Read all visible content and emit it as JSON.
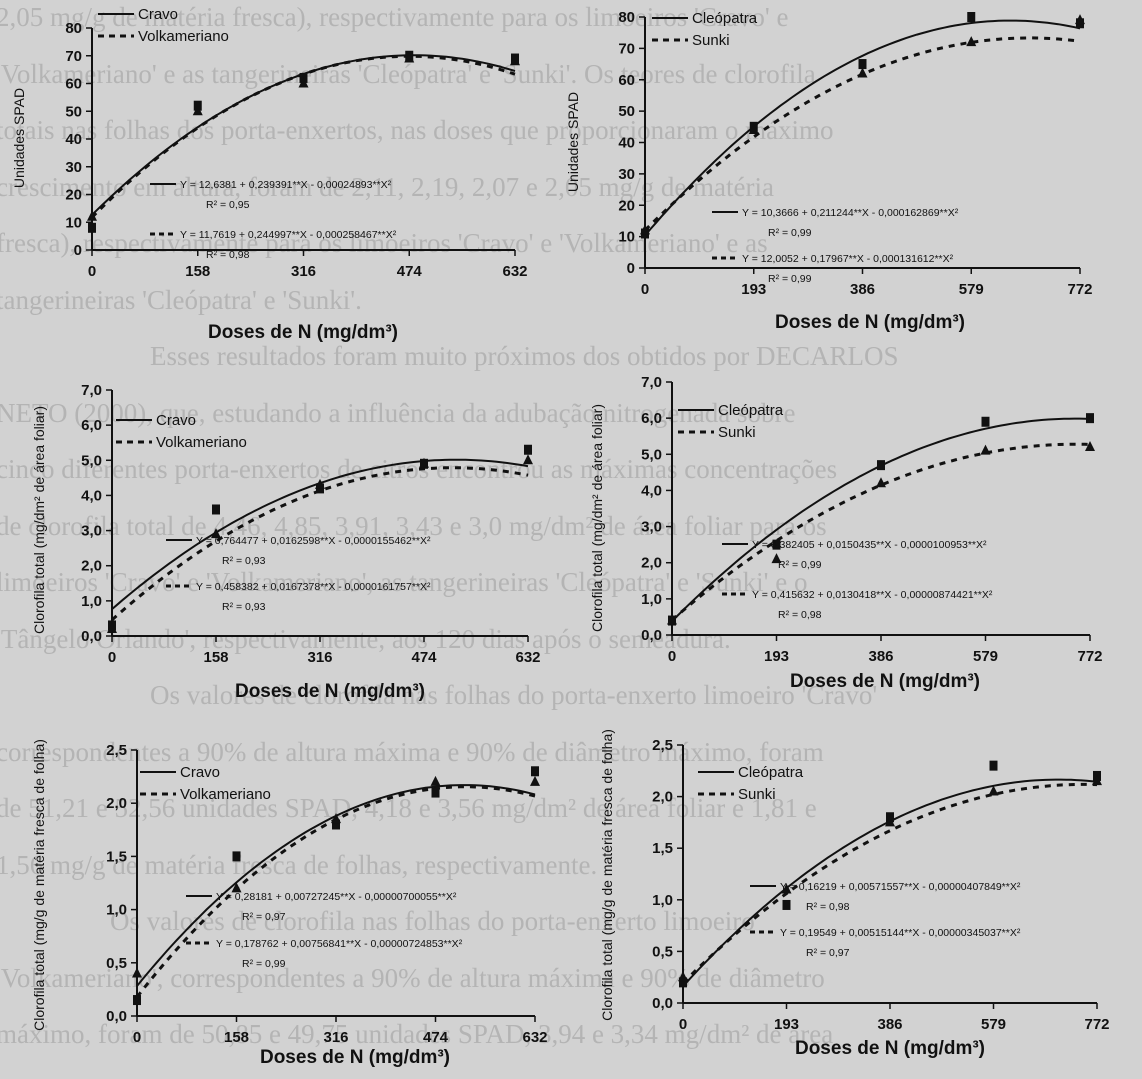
{
  "background_text": [
    "2,05 mg/g de matéria fresca), respectivamente para os limoeiros 'Cravo' e",
    "'Volkameriano' e as tangerineiras 'Cleópatra' e 'Sunki'. Os teores de clorofila",
    "totais nas folhas dos porta-enxertos, nas doses que proporcionaram o máximo",
    "crescimento em altura, foram de 2,11, 2,19, 2,07 e 2,05 mg/g de matéria",
    "fresca), respectivamente para os limoeiros 'Cravo' e 'Volkameriano' e as",
    "tangerineiras 'Cleópatra' e 'Sunki'.",
    "Esses resultados foram muito próximos dos obtidos por DECARLOS",
    "NETO (2000), que, estudando a influência da adubação nitrogenada sobre",
    "cinco diferentes porta-enxertos de citros encontrou as máximas concentrações",
    "de clorofila total de 4,46, 4,85, 3,91, 3,43 e 3,0 mg/dm² de área foliar para os",
    "limoeiros 'Cravo' e 'Volkameriano', as tangerineiras 'Cleópatra' e 'Sunki' e o",
    "'Tângelo Orlando', respectivamente, aos 120 dias após o semeadura.",
    "Os valores de clorofila nas folhas do porta-enxerto limoeiro 'Cravo'",
    "correspondentes a 90% de altura máxima e 90% de diâmetro máximo, foram",
    "de 51,21 e 52,56 unidades SPAD, 4,18 e 3,56 mg/dm² de área foliar e 1,81 e",
    "1,56 mg/g de matéria fresca de folhas, respectivamente.",
    "Os valores de clorofila nas folhas do porta-enxerto limoeiro",
    "'Volkameriano', correspondentes a 90% de altura máxima e 90% de diâmetro",
    "máximo, foram de 50,85 e 49,75 unidades SPAD, 3,94 e 3,34 mg/dm² de área"
  ],
  "chart_data": [
    {
      "type": "scatter",
      "ylabel": "Unidades SPAD",
      "xlabel": "Doses de N (mg/dm³)",
      "xticks": [
        "0",
        "158",
        "316",
        "474",
        "632"
      ],
      "yticks": [
        "0",
        "10",
        "20",
        "30",
        "40",
        "50",
        "60",
        "70",
        "80"
      ],
      "xlim": [
        0,
        632
      ],
      "ylim": [
        0,
        80
      ],
      "legend": [
        "Cravo",
        "Volkameriano"
      ],
      "series": [
        {
          "name": "Cravo",
          "x": [
            0,
            158,
            316,
            474,
            632
          ],
          "y": [
            8,
            52,
            62,
            70,
            69
          ],
          "fit": [
            12.6381,
            0.239391,
            -0.00024893
          ]
        },
        {
          "name": "Volkameriano",
          "x": [
            0,
            158,
            316,
            474,
            632
          ],
          "y": [
            12,
            50,
            60,
            69,
            68
          ],
          "fit": [
            11.7619,
            0.244997,
            -0.000258467
          ]
        }
      ],
      "equations": [
        {
          "text": "Y = 12,6381 + 0,239391**X - 0,00024893**X²",
          "r2": "R² = 0,95"
        },
        {
          "text": "Y = 11,7619 + 0,244997**X - 0,000258467**X²",
          "r2": "R² = 0,98"
        }
      ]
    },
    {
      "type": "scatter",
      "ylabel": "Unidades SPAD",
      "xlabel": "Doses de N (mg/dm³)",
      "xticks": [
        "0",
        "193",
        "386",
        "579",
        "772"
      ],
      "yticks": [
        "0",
        "10",
        "20",
        "30",
        "40",
        "50",
        "60",
        "70",
        "80"
      ],
      "xlim": [
        0,
        772
      ],
      "ylim": [
        0,
        80
      ],
      "legend": [
        "Cleópatra",
        "Sunki"
      ],
      "series": [
        {
          "name": "Cleópatra",
          "x": [
            0,
            193,
            386,
            579,
            772
          ],
          "y": [
            11,
            45,
            65,
            80,
            78
          ],
          "fit": [
            10.3666,
            0.211244,
            -0.000162869
          ]
        },
        {
          "name": "Sunki",
          "x": [
            0,
            193,
            386,
            579,
            772
          ],
          "y": [
            12,
            44,
            62,
            72,
            79
          ],
          "fit": [
            12.0052,
            0.17967,
            -0.000131612
          ]
        }
      ],
      "equations": [
        {
          "text": "Y = 10,3666 + 0,211244**X - 0,000162869**X²",
          "r2": "R² = 0,99"
        },
        {
          "text": "Y = 12,0052 + 0,17967**X - 0,000131612**X²",
          "r2": "R² = 0,99"
        }
      ]
    },
    {
      "type": "scatter",
      "ylabel": "Clorofila total (mg/dm² de área foliar)",
      "xlabel": "Doses de N (mg/dm³)",
      "xticks": [
        "0",
        "158",
        "316",
        "474",
        "632"
      ],
      "yticks": [
        "0,0",
        "1,0",
        "2,0",
        "3,0",
        "4,0",
        "5,0",
        "6,0",
        "7,0"
      ],
      "xlim": [
        0,
        632
      ],
      "ylim": [
        0,
        7
      ],
      "legend": [
        "Cravo",
        "Volkameriano"
      ],
      "series": [
        {
          "name": "Cravo",
          "x": [
            0,
            158,
            316,
            474,
            632
          ],
          "y": [
            0.3,
            3.6,
            4.2,
            4.9,
            5.3
          ],
          "fit": [
            0.764477,
            0.0162598,
            -1.55462e-05
          ]
        },
        {
          "name": "Volkameriano",
          "x": [
            0,
            158,
            316,
            474,
            632
          ],
          "y": [
            0.2,
            2.9,
            4.3,
            4.9,
            5.0
          ],
          "fit": [
            0.458382,
            0.0167378,
            -1.61757e-05
          ]
        }
      ],
      "equations": [
        {
          "text": "Y = 0,764477 + 0,0162598**X - 0,0000155462**X²",
          "r2": "R² = 0,93"
        },
        {
          "text": "Y = 0,458382 + 0,0167378**X - 0,0000161757**X²",
          "r2": "R² = 0,93"
        }
      ]
    },
    {
      "type": "scatter",
      "ylabel": "Clorofila total (mg/dm² de área foliar)",
      "xlabel": "Doses de N (mg/dm³)",
      "xticks": [
        "0",
        "193",
        "386",
        "579",
        "772"
      ],
      "yticks": [
        "0,0",
        "1,0",
        "2,0",
        "3,0",
        "4,0",
        "5,0",
        "6,0",
        "7,0"
      ],
      "xlim": [
        0,
        772
      ],
      "ylim": [
        0,
        7
      ],
      "legend": [
        "Cleópatra",
        "Sunki"
      ],
      "series": [
        {
          "name": "Cleópatra",
          "x": [
            0,
            193,
            386,
            579,
            772
          ],
          "y": [
            0.4,
            2.5,
            4.7,
            5.9,
            6.0
          ],
          "fit": [
            0.382405,
            0.0150435,
            -1.00953e-05
          ]
        },
        {
          "name": "Sunki",
          "x": [
            0,
            193,
            386,
            579,
            772
          ],
          "y": [
            0.4,
            2.1,
            4.2,
            5.1,
            5.2
          ],
          "fit": [
            0.415632,
            0.0130418,
            -8.74421e-06
          ]
        }
      ],
      "equations": [
        {
          "text": "Y = 0,382405 + 0,0150435**X - 0,0000100953**X²",
          "r2": "R² = 0,99"
        },
        {
          "text": "Y = 0,415632 + 0,0130418**X - 0,00000874421**X²",
          "r2": "R² = 0,98"
        }
      ]
    },
    {
      "type": "scatter",
      "ylabel": "Clorofila total (mg/g de matéria fresca de folha)",
      "xlabel": "Doses de N (mg/dm³)",
      "xticks": [
        "0",
        "158",
        "316",
        "474",
        "632"
      ],
      "yticks": [
        "0,0",
        "0,5",
        "1,0",
        "1,5",
        "2,0",
        "2,5"
      ],
      "xlim": [
        0,
        632
      ],
      "ylim": [
        0,
        2.5
      ],
      "legend": [
        "Cravo",
        "Volkameriano"
      ],
      "series": [
        {
          "name": "Cravo",
          "x": [
            0,
            158,
            316,
            474,
            632
          ],
          "y": [
            0.15,
            1.5,
            1.8,
            2.1,
            2.3
          ],
          "fit": [
            0.28181,
            0.00727245,
            -7.00055e-06
          ]
        },
        {
          "name": "Volkameriano",
          "x": [
            0,
            158,
            316,
            474,
            632
          ],
          "y": [
            0.4,
            1.2,
            1.85,
            2.2,
            2.2
          ],
          "fit": [
            0.178762,
            0.00756841,
            -7.24853e-06
          ]
        }
      ],
      "equations": [
        {
          "text": "Y = 0,28181 + 0,00727245**X - 0,00000700055**X²",
          "r2": "R² = 0,97"
        },
        {
          "text": "Y = 0,178762 + 0,00756841**X - 0,00000724853**X²",
          "r2": "R² = 0,99"
        }
      ]
    },
    {
      "type": "scatter",
      "ylabel": "Clorofila total (mg/g de matéria fresca de folha)",
      "xlabel": "Doses de N (mg/dm³)",
      "xticks": [
        "0",
        "193",
        "386",
        "579",
        "772"
      ],
      "yticks": [
        "0,0",
        "0,5",
        "1,0",
        "1,5",
        "2,0",
        "2,5"
      ],
      "xlim": [
        0,
        772
      ],
      "ylim": [
        0,
        2.5
      ],
      "legend": [
        "Cleópatra",
        "Sunki"
      ],
      "series": [
        {
          "name": "Cleópatra",
          "x": [
            0,
            193,
            386,
            579,
            772
          ],
          "y": [
            0.2,
            0.95,
            1.8,
            2.3,
            2.2
          ],
          "fit": [
            0.16219,
            0.00571557,
            -4.07849e-06
          ]
        },
        {
          "name": "Sunki",
          "x": [
            0,
            193,
            386,
            579,
            772
          ],
          "y": [
            0.25,
            1.1,
            1.75,
            2.05,
            2.15
          ],
          "fit": [
            0.19549,
            0.00515144,
            -3.45037e-06
          ]
        }
      ],
      "equations": [
        {
          "text": "Y = 0,16219 + 0,00571557**X - 0,00000407849**X²",
          "r2": "R² = 0,98"
        },
        {
          "text": "Y = 0,19549 + 0,00515144**X - 0,00000345037**X²",
          "r2": "R² = 0,97"
        }
      ]
    }
  ]
}
